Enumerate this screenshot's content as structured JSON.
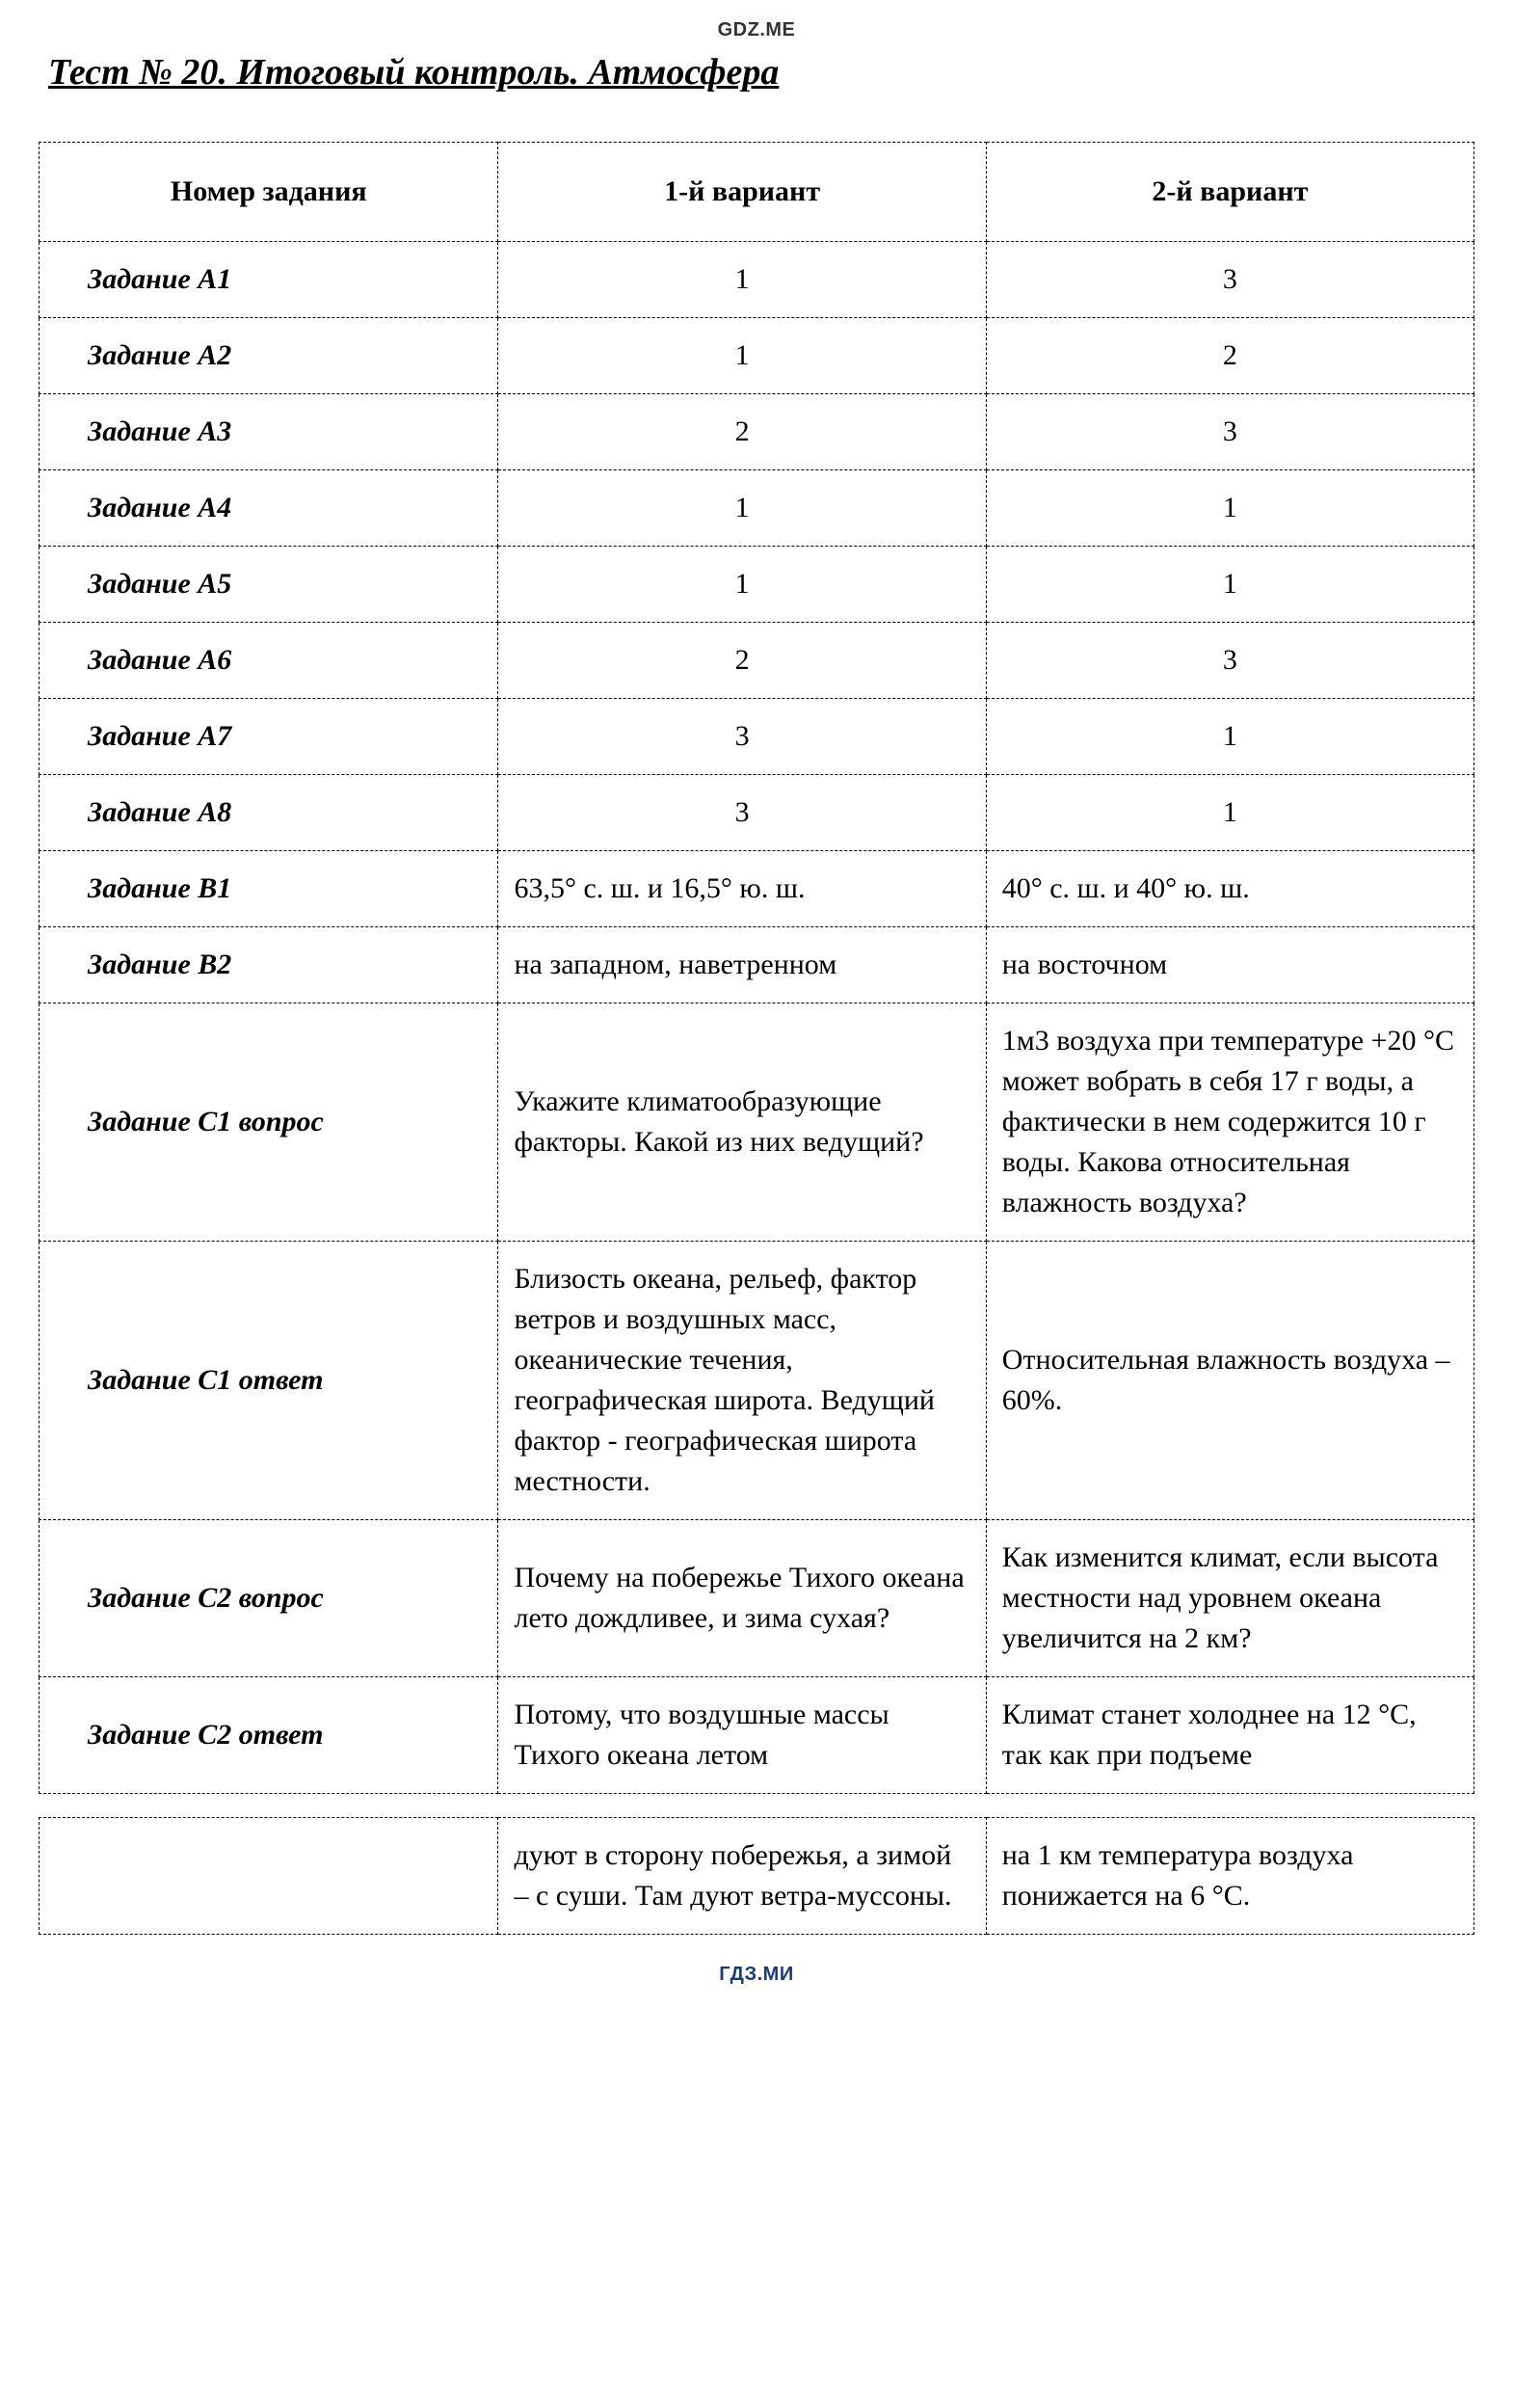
{
  "header": {
    "watermark_top": "GDZ.ME",
    "watermark_bottom": "ГДЗ.МИ",
    "title": "Тест № 20.  Итоговый контроль. Атмосфера"
  },
  "table": {
    "columns": [
      "Номер задания",
      "1-й вариант",
      "2-й вариант"
    ],
    "column_widths": [
      "32%",
      "34%",
      "34%"
    ],
    "border_style": "dashed",
    "border_color": "#000000",
    "font_family": "Times New Roman",
    "label_fontsize": 30,
    "header_fontsize": 30,
    "rows": [
      {
        "label": "Задание А1",
        "v1": "1",
        "v2": "3",
        "align": "center"
      },
      {
        "label": "Задание А2",
        "v1": "1",
        "v2": "2",
        "align": "center"
      },
      {
        "label": "Задание А3",
        "v1": "2",
        "v2": "3",
        "align": "center"
      },
      {
        "label": "Задание А4",
        "v1": "1",
        "v2": "1",
        "align": "center"
      },
      {
        "label": "Задание А5",
        "v1": "1",
        "v2": "1",
        "align": "center"
      },
      {
        "label": "Задание А6",
        "v1": "2",
        "v2": "3",
        "align": "center"
      },
      {
        "label": "Задание А7",
        "v1": "3",
        "v2": "1",
        "align": "center"
      },
      {
        "label": "Задание А8",
        "v1": "3",
        "v2": "1",
        "align": "center"
      },
      {
        "label": "Задание В1",
        "v1": "63,5° с. ш. и 16,5° ю. ш.",
        "v2": "40° с. ш. и 40° ю. ш.",
        "align": "left"
      },
      {
        "label": "Задание В2",
        "v1": "на западном, наветренном",
        "v2": "на восточном",
        "align": "left"
      },
      {
        "label": "Задание С1 вопрос",
        "v1": "Укажите климатообразующие факторы. Какой из них ведущий?",
        "v2": "1м3 воздуха при температуре +20 °С может вобрать в себя 17 г воды, а фактически в нем содержится 10 г воды. Какова относительная влажность воздуха?",
        "align": "left"
      },
      {
        "label": "Задание С1 ответ",
        "v1": "Близость океана, рельеф, фактор ветров и воздушных масс, океанические течения, географическая широта. Ведущий фактор - географическая широта местности.",
        "v2": "Относительная влажность воздуха – 60%.",
        "align": "left"
      },
      {
        "label": "Задание С2 вопрос",
        "v1": "Почему на побережье Тихого океана лето дождливее, и зима сухая?",
        "v2": "Как изменится климат, если высота местности над уровнем океана увеличится на 2 км?",
        "align": "left"
      },
      {
        "label": "Задание С2 ответ",
        "v1": "Потому, что воздушные массы Тихого океана летом",
        "v2": "Климат станет холоднее на 12 °С, так как при подъеме",
        "align": "left"
      }
    ],
    "continuation_row": {
      "label": "",
      "v1": "дуют в сторону побережья, а зимой – с  суши. Там дуют ветра-муссоны.",
      "v2": "на 1 км температура воздуха понижается на 6 °С."
    }
  },
  "colors": {
    "background": "#ffffff",
    "text": "#000000",
    "watermark_top": "#333333",
    "watermark_bottom": "#1a3d7a"
  }
}
